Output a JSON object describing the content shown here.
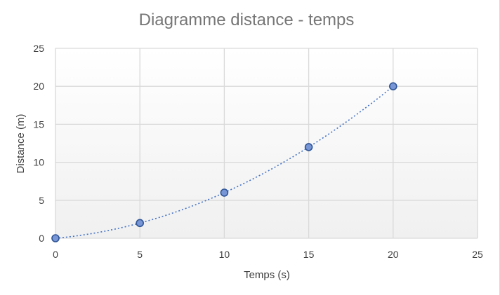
{
  "chart_data": {
    "type": "scatter",
    "title": "Diagramme distance - temps",
    "xlabel": "Temps (s)",
    "ylabel": "Distance (m)",
    "xlim": [
      0,
      25
    ],
    "ylim": [
      0,
      25
    ],
    "xticks": [
      0,
      5,
      10,
      15,
      20,
      25
    ],
    "yticks": [
      0,
      5,
      10,
      15,
      20,
      25
    ],
    "grid": true,
    "trendline": "dotted",
    "series": [
      {
        "x": [
          0,
          5,
          10,
          15,
          20
        ],
        "y": [
          0,
          2,
          6,
          12,
          20
        ]
      }
    ],
    "colors": {
      "marker_fill": "#7896d6",
      "marker_stroke": "#2f5597",
      "trendline": "#4472c4",
      "grid": "#d9d9d9",
      "plot_bg_top": "#ffffff",
      "plot_bg_bottom": "#f0f0f0"
    }
  }
}
